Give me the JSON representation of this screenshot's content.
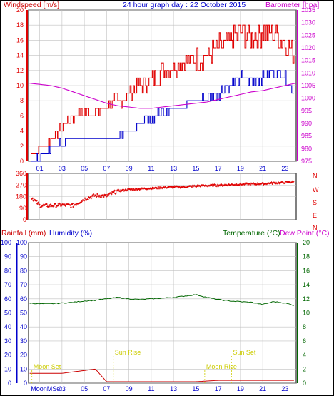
{
  "header": {
    "windspeed_label": "Windspeed [m/s]",
    "title": "24 hour graph day : 22 October 2015",
    "barometer_label": "Barometer [hpa]"
  },
  "rain_header": {
    "rainfall_label": "Rainfall (mm)",
    "humidity_label": "Humidity (%)",
    "temperature_label": "Temperature (°C)",
    "dewpoint_label": "Dew Point (°C)"
  },
  "colors": {
    "frame": "#000000",
    "grid": "#c0c0c0",
    "wind_gust": "#e00000",
    "wind_avg": "#0000cc",
    "barometer": "#cc00cc",
    "direction": "#e00000",
    "humidity_axis": "#0000cc",
    "rain_axis": "#cc0000",
    "temperature": "#006600",
    "dewpoint": "#cc00cc",
    "sun": "#cccc00",
    "moon": "#cccc00"
  },
  "chart_data": [
    {
      "name": "wind-and-pressure",
      "type": "line",
      "x_ticks": [
        "01",
        "03",
        "05",
        "07",
        "09",
        "11",
        "13",
        "15",
        "17",
        "19",
        "21",
        "23"
      ],
      "y_left": {
        "label": "Windspeed [m/s]",
        "ylim": [
          0,
          20
        ],
        "ticks": [
          "0",
          "2",
          "4",
          "6",
          "8",
          "10",
          "12",
          "14",
          "16",
          "18",
          "20"
        ]
      },
      "y_right": {
        "label": "Barometer [hpa]",
        "ylim": [
          975,
          1035
        ],
        "ticks": [
          "975",
          "980",
          "985",
          "990",
          "995",
          "1000",
          "1005",
          "1010",
          "1015",
          "1020",
          "1025",
          "1030",
          "1035"
        ]
      },
      "x_hours": [
        0,
        1,
        2,
        3,
        4,
        5,
        6,
        7,
        8,
        9,
        10,
        11,
        12,
        13,
        14,
        15,
        16,
        17,
        18,
        19,
        20,
        21,
        22,
        23,
        24
      ],
      "series": [
        {
          "values": [
            0.5,
            1.5,
            3,
            4.5,
            6,
            6.5,
            6.5,
            7,
            8,
            9,
            10,
            10.5,
            12,
            12.5,
            13,
            13.5,
            14,
            15,
            16,
            17,
            16.5,
            17,
            17,
            16,
            14
          ]
        },
        {
          "values": [
            0,
            0.5,
            1.5,
            2.5,
            3,
            3,
            3,
            3,
            3.5,
            4,
            5,
            5.5,
            6.5,
            7,
            7.5,
            8,
            8.5,
            9,
            10,
            11,
            10.5,
            11,
            12,
            11,
            9
          ]
        },
        {
          "values": [
            1006,
            1005.5,
            1005,
            1004,
            1002.5,
            1001,
            999.5,
            998,
            997,
            996.5,
            996,
            996,
            996.5,
            997,
            997.5,
            998,
            998.5,
            999.5,
            1000.5,
            1001.5,
            1002.5,
            1003,
            1004,
            1005,
            1006
          ]
        }
      ]
    },
    {
      "name": "wind-direction",
      "type": "scatter",
      "y_left": {
        "ylim": [
          0,
          360
        ],
        "ticks": [
          "0",
          "90",
          "180",
          "270",
          "360"
        ]
      },
      "y_right_letters": [
        "N",
        "W",
        "S",
        "E",
        "N"
      ],
      "x_hours": [
        0,
        1,
        2,
        3,
        4,
        5,
        6,
        7,
        8,
        9,
        10,
        11,
        12,
        13,
        14,
        15,
        16,
        17,
        18,
        19,
        20,
        21,
        22,
        23,
        24
      ],
      "values": [
        200,
        110,
        110,
        115,
        110,
        160,
        190,
        185,
        225,
        235,
        240,
        245,
        250,
        255,
        255,
        262,
        265,
        268,
        272,
        275,
        278,
        280,
        285,
        290,
        295
      ]
    },
    {
      "name": "rain-humidity-temperature",
      "type": "line",
      "x_ticks": [
        "01",
        "03",
        "05",
        "07",
        "09",
        "11",
        "13",
        "15",
        "17",
        "19",
        "21",
        "23"
      ],
      "y_left_rain": {
        "ylim": [
          0,
          100
        ],
        "ticks": [
          "0",
          "10",
          "20",
          "30",
          "40",
          "50",
          "60",
          "70",
          "80",
          "90",
          "100"
        ]
      },
      "y_left_humidity": {
        "ylim": [
          0,
          100
        ],
        "ticks": [
          "0",
          "10",
          "20",
          "30",
          "40",
          "50",
          "60",
          "70",
          "80",
          "90",
          "100"
        ]
      },
      "y_right_temp": {
        "ylim": [
          0,
          20
        ],
        "ticks": [
          "0",
          "2",
          "4",
          "6",
          "8",
          "10",
          "12",
          "14",
          "16",
          "18",
          "20"
        ]
      },
      "x_hours": [
        0,
        1,
        2,
        3,
        4,
        5,
        6,
        7,
        8,
        9,
        10,
        11,
        12,
        13,
        14,
        15,
        16,
        17,
        18,
        19,
        20,
        21,
        22,
        23,
        24
      ],
      "series": [
        {
          "values": [
            11.4,
            11.3,
            11.3,
            11.4,
            11.5,
            11.7,
            11.8,
            12.0,
            12.2,
            12.0,
            11.9,
            12.0,
            12.1,
            12.2,
            12.4,
            12.6,
            12.2,
            11.9,
            11.7,
            11.6,
            11.5,
            11.2,
            11.6,
            11.4,
            11.0
          ]
        },
        {
          "values": [
            1.4,
            1.4,
            1.4,
            1.4,
            1.6,
            1.8,
            2.0,
            0.2,
            0.2,
            0.2,
            0.2,
            0.2,
            0.2,
            0.2,
            0.2,
            0.2,
            0.3,
            0.4,
            0.4,
            0.4,
            0.4,
            0.4,
            0.4,
            0.4,
            0.4
          ]
        },
        {
          "values": [
            10,
            10,
            10,
            10,
            10,
            10,
            10,
            10,
            10,
            10,
            10,
            10,
            10,
            10,
            10,
            10,
            10,
            10,
            10,
            10,
            10,
            10,
            10,
            10,
            10
          ]
        }
      ],
      "annotations": [
        {
          "text": "Moon Set",
          "hour": 0.3
        },
        {
          "text": "Sun Rise",
          "hour": 7.6
        },
        {
          "text": "Moon Rise",
          "hour": 15.8
        },
        {
          "text": "Sun Set",
          "hour": 18.2
        }
      ],
      "bottom_labels": [
        "MoonMSet",
        "03",
        "05",
        "07",
        "09",
        "11",
        "13",
        "15",
        "17",
        "19",
        "21",
        "23"
      ]
    }
  ]
}
